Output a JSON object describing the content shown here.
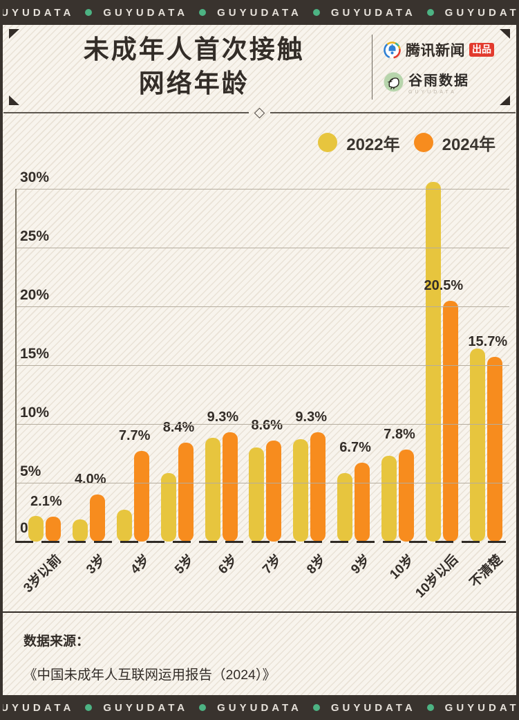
{
  "brand_bar": {
    "text": "GUYUDATA",
    "repeat": 5,
    "dot_color": "#4db383",
    "bar_color": "#39332e"
  },
  "header": {
    "title_line1": "未成年人首次接触",
    "title_line2": "网络年龄",
    "publisher": {
      "name": "腾讯新闻",
      "badge": "出品"
    },
    "data_brand": {
      "name": "谷雨数据",
      "subtext": "GUYUDATA"
    }
  },
  "legend": [
    {
      "label": "2022年",
      "color": "#e7c53e"
    },
    {
      "label": "2024年",
      "color": "#f78c1e"
    }
  ],
  "chart_data": {
    "type": "bar",
    "title": "未成年人首次接触网络年龄",
    "categories": [
      "3岁以前",
      "3岁",
      "4岁",
      "5岁",
      "6岁",
      "7岁",
      "8岁",
      "9岁",
      "10岁",
      "10岁以后",
      "不清楚"
    ],
    "series": [
      {
        "name": "2022年",
        "color": "#e7c53e",
        "values": [
          2.2,
          1.9,
          2.7,
          5.8,
          8.8,
          8.0,
          8.7,
          5.8,
          7.3,
          30.6,
          16.4
        ]
      },
      {
        "name": "2024年",
        "color": "#f78c1e",
        "values": [
          2.1,
          4.0,
          7.7,
          8.4,
          9.3,
          8.6,
          9.3,
          6.7,
          7.8,
          20.5,
          15.7
        ]
      }
    ],
    "data_labels": [
      "2.1%",
      "4.0%",
      "7.7%",
      "8.4%",
      "9.3%",
      "8.6%",
      "9.3%",
      "6.7%",
      "7.8%",
      "20.5%",
      "15.7%"
    ],
    "data_labels_series": "2024年",
    "y_ticks": [
      "30%",
      "25%",
      "20%",
      "15%",
      "10%",
      "5%",
      "0"
    ],
    "ylim": [
      0,
      30
    ],
    "ylabel": "",
    "xlabel": "",
    "grid": "horizontal",
    "legend_position": "top-right"
  },
  "footer": {
    "source_label": "数据来源：",
    "source": "《中国未成年人互联网运用报告（2024）》"
  }
}
